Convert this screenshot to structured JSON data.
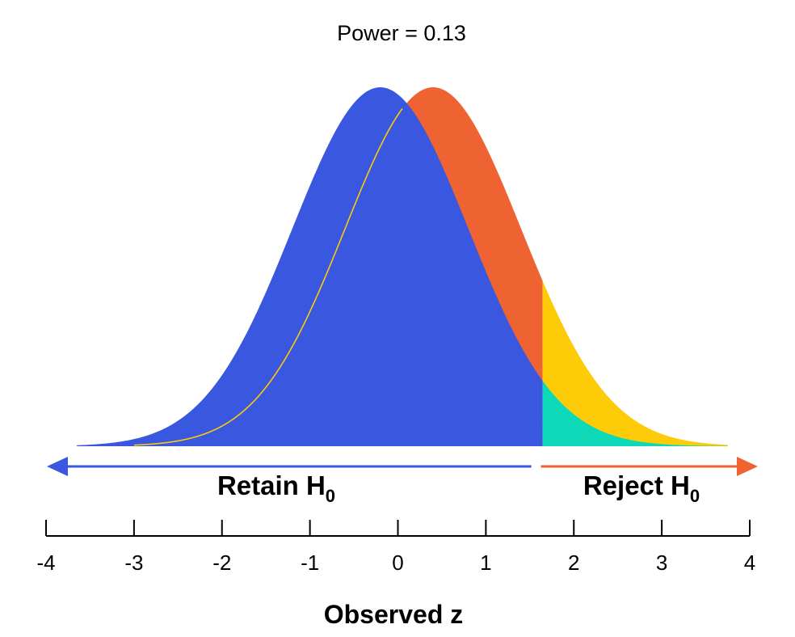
{
  "chart_data": {
    "type": "area",
    "title": "Power = 0.13",
    "xlabel": "Observed z",
    "ylabel": "",
    "xlim": [
      -4,
      4
    ],
    "xticks": [
      -4,
      -3,
      -2,
      -1,
      0,
      1,
      2,
      3,
      4
    ],
    "grid": false,
    "critical_value": 1.645,
    "power": 0.13,
    "distributions": [
      {
        "role": "null",
        "mean": -0.2,
        "sd": 1,
        "color": "#3A57E0",
        "tail_color": "#0DD9B8"
      },
      {
        "role": "alternative",
        "mean": 0.4,
        "sd": 1,
        "color": "#EE6331",
        "tail_color": "#FDCB07"
      }
    ],
    "regions": {
      "retain": {
        "text": "Retain H",
        "sub": "0",
        "color": "#3A57E0"
      },
      "reject": {
        "text": "Reject H",
        "sub": "0",
        "color": "#EE6331"
      }
    }
  }
}
